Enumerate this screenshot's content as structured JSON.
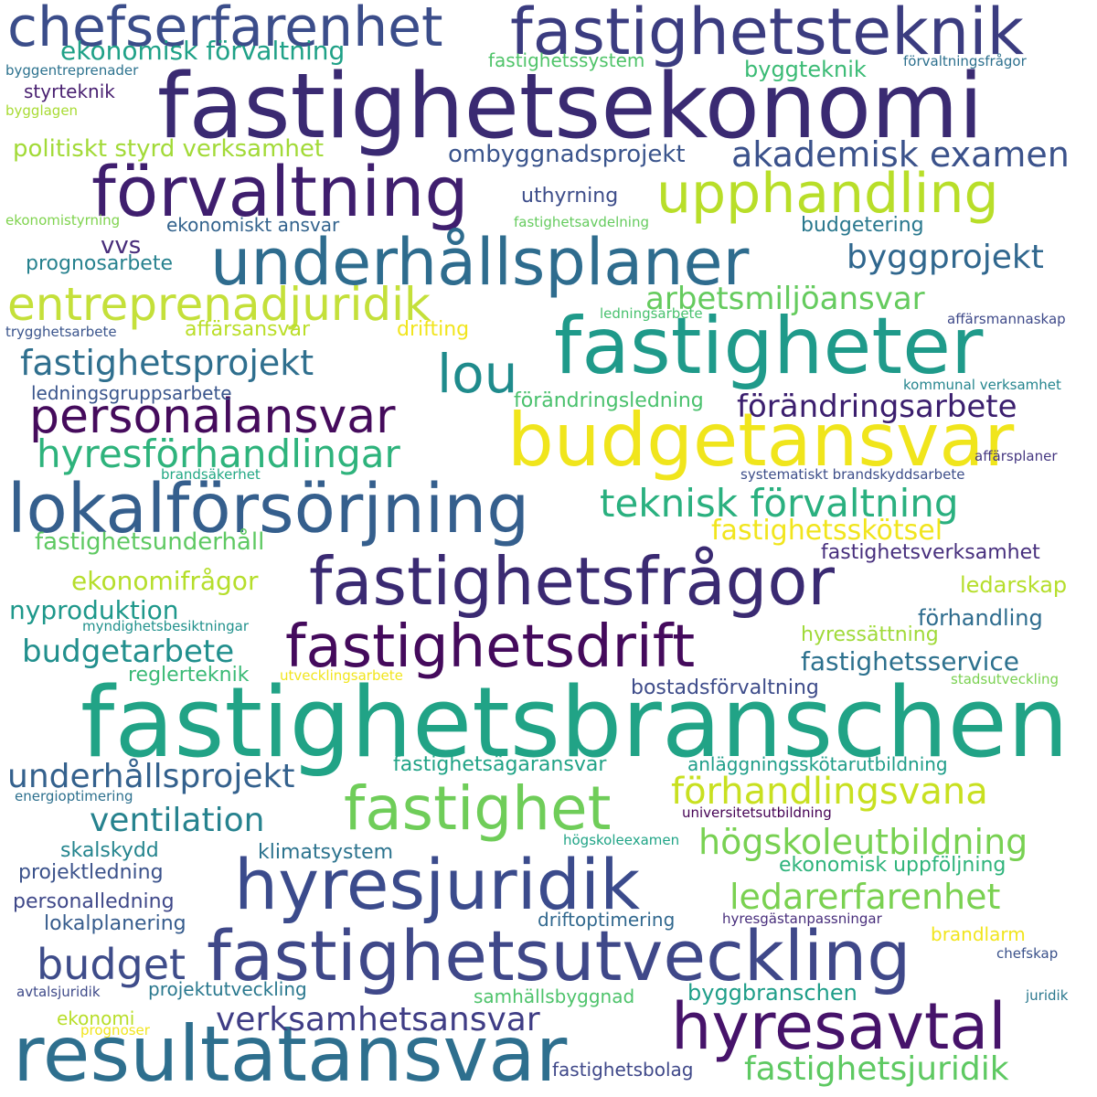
{
  "palette": [
    "#440154",
    "#482878",
    "#3e4989",
    "#31688e",
    "#26828e",
    "#1f9e89",
    "#35b779",
    "#6ece58",
    "#b5de2b",
    "#fde725"
  ],
  "words": [
    {
      "text": "fastighetsbranschen",
      "color": "#21a386"
    },
    {
      "text": "fastighetsekonomi",
      "color": "#3a2a72"
    },
    {
      "text": "budgetansvar",
      "color": "#f0e51c"
    },
    {
      "text": "fastigheter",
      "color": "#1f9a8a"
    },
    {
      "text": "fastighetsutveckling",
      "color": "#3f4889"
    },
    {
      "text": "resultatansvar",
      "color": "#2e6f8e"
    },
    {
      "text": "hyresjuridik",
      "color": "#3b4b8c"
    },
    {
      "text": "fastighetsfrågor",
      "color": "#3a2a72"
    },
    {
      "text": "lokalförsörjning",
      "color": "#355f8d"
    },
    {
      "text": "fastighetsteknik",
      "color": "#3b3c80"
    },
    {
      "text": "förvaltning",
      "color": "#3f1e6e"
    },
    {
      "text": "underhållsplaner",
      "color": "#2e6c8e"
    },
    {
      "text": "fastighetsdrift",
      "color": "#440a5c"
    },
    {
      "text": "chefserfarenhet",
      "color": "#3b4d8a"
    },
    {
      "text": "hyresavtal",
      "color": "#46136a"
    },
    {
      "text": "fastighet",
      "color": "#6fcd59"
    },
    {
      "text": "upphandling",
      "color": "#b8de29"
    },
    {
      "text": "entreprenadjuridik",
      "color": "#c4e03a"
    },
    {
      "text": "personalansvar",
      "color": "#450b5c"
    },
    {
      "text": "lou",
      "color": "#1f8b8c"
    },
    {
      "text": "teknisk förvaltning",
      "color": "#2ab07f"
    },
    {
      "text": "hyresförhandlingar",
      "color": "#2eb37c"
    },
    {
      "text": "budget",
      "color": "#3e4c8a"
    },
    {
      "text": "förhandlingsvana",
      "color": "#c8e020"
    },
    {
      "text": "verksamhetsansvar",
      "color": "#3f3d85"
    },
    {
      "text": "akademisk examen",
      "color": "#3b528b"
    },
    {
      "text": "fastighetsprojekt",
      "color": "#2f6f8e"
    },
    {
      "text": "högskoleutbildning",
      "color": "#78d152"
    },
    {
      "text": "underhållsprojekt",
      "color": "#34618d"
    },
    {
      "text": "ledarerfarenhet",
      "color": "#7ad151"
    },
    {
      "text": "fastighetsjuridik",
      "color": "#5ec962"
    },
    {
      "text": "förändringsarbete",
      "color": "#3b1e6e"
    },
    {
      "text": "byggprojekt",
      "color": "#30678e"
    },
    {
      "text": "arbetsmiljöansvar",
      "color": "#65cb5e"
    },
    {
      "text": "ventilation",
      "color": "#26828e"
    },
    {
      "text": "budgetarbete",
      "color": "#218f8d"
    },
    {
      "text": "fastighetsskötsel",
      "color": "#f1e51d"
    },
    {
      "text": "fastighetsservice",
      "color": "#2d718e"
    },
    {
      "text": "ekonomisk förvaltning",
      "color": "#1fa187"
    },
    {
      "text": "ekonomifrågor",
      "color": "#b5de2b"
    },
    {
      "text": "politiskt styrd verksamhet",
      "color": "#a2da37"
    },
    {
      "text": "fastighetsunderhåll",
      "color": "#5ec962"
    },
    {
      "text": "nyproduktion",
      "color": "#1f988b"
    },
    {
      "text": "ombyggnadsprojekt",
      "color": "#3a548c"
    },
    {
      "text": "fastighetsverksamhet",
      "color": "#472f7d"
    },
    {
      "text": "byggbranschen",
      "color": "#1f9e89"
    },
    {
      "text": "byggteknik",
      "color": "#3bbb75"
    },
    {
      "text": "fastighetssystem",
      "color": "#50c46a"
    },
    {
      "text": "förhandling",
      "color": "#2e6c8e"
    },
    {
      "text": "hyressättning",
      "color": "#a0da39"
    },
    {
      "text": "ledarskap",
      "color": "#b5de2b"
    },
    {
      "text": "bostadsförvaltning",
      "color": "#3e4c8a"
    },
    {
      "text": "reglerteknik",
      "color": "#3aba76"
    },
    {
      "text": "uthyrning",
      "color": "#3d4d8a"
    },
    {
      "text": "ekonomiskt ansvar",
      "color": "#33638d"
    },
    {
      "text": "budgetering",
      "color": "#2a788e"
    },
    {
      "text": "vvs",
      "color": "#472c7a"
    },
    {
      "text": "prognosarbete",
      "color": "#26818e"
    },
    {
      "text": "affärsansvar",
      "color": "#bade28"
    },
    {
      "text": "drifting",
      "color": "#f1e51d"
    },
    {
      "text": "ledningsgruppsarbete",
      "color": "#39558c"
    },
    {
      "text": "förändringsledning",
      "color": "#4ac16d"
    },
    {
      "text": "styrteknik",
      "color": "#481f70"
    },
    {
      "text": "klimatsystem",
      "color": "#2c738e"
    },
    {
      "text": "skalskydd",
      "color": "#25858e"
    },
    {
      "text": "projektledning",
      "color": "#3b528b"
    },
    {
      "text": "personalledning",
      "color": "#3f4889"
    },
    {
      "text": "lokalplanering",
      "color": "#365c8d"
    },
    {
      "text": "ekonomisk uppföljning",
      "color": "#2fb47c"
    },
    {
      "text": "fastighetsägaransvar",
      "color": "#20a386"
    },
    {
      "text": "anläggningsskötarutbildning",
      "color": "#1f9e89"
    },
    {
      "text": "driftoptimering",
      "color": "#31688e"
    },
    {
      "text": "projektutveckling",
      "color": "#2a788e"
    },
    {
      "text": "samhällsbyggnad",
      "color": "#4ec36b"
    },
    {
      "text": "fastighetsbolag",
      "color": "#3f4889"
    },
    {
      "text": "brandlarm",
      "color": "#f1e51d"
    },
    {
      "text": "ekonomi",
      "color": "#b8de29"
    },
    {
      "text": "byggentreprenader",
      "color": "#2c728e"
    },
    {
      "text": "bygglagen",
      "color": "#a8db34"
    },
    {
      "text": "förvaltningsfrågor",
      "color": "#2d708e"
    },
    {
      "text": "ekonomistyrning",
      "color": "#7fd34e"
    },
    {
      "text": "fastighetsavdelning",
      "color": "#65cb5e"
    },
    {
      "text": "trygghetsarbete",
      "color": "#3a548c"
    },
    {
      "text": "ledningsarbete",
      "color": "#48c16e"
    },
    {
      "text": "affärsmannaskap",
      "color": "#3e4989"
    },
    {
      "text": "kommunal verksamhet",
      "color": "#25858e"
    },
    {
      "text": "affärsplaner",
      "color": "#453781"
    },
    {
      "text": "brandsäkerhet",
      "color": "#22a884"
    },
    {
      "text": "systematiskt brandskyddsarbete",
      "color": "#3d4e8a"
    },
    {
      "text": "myndighetsbesiktningar",
      "color": "#21918c"
    },
    {
      "text": "utvecklingsarbete",
      "color": "#f1e51d"
    },
    {
      "text": "stadsutveckling",
      "color": "#7ad151"
    },
    {
      "text": "energioptimering",
      "color": "#2d708e"
    },
    {
      "text": "universitetsutbildning",
      "color": "#440154"
    },
    {
      "text": "högskoleexamen",
      "color": "#20a486"
    },
    {
      "text": "hyresgästanpassningar",
      "color": "#472d7b"
    },
    {
      "text": "chefskap",
      "color": "#3b528b"
    },
    {
      "text": "avtalsjuridik",
      "color": "#3e4a89"
    },
    {
      "text": "juridik",
      "color": "#2a788e"
    },
    {
      "text": "prognoser",
      "color": "#f1e51d"
    }
  ]
}
